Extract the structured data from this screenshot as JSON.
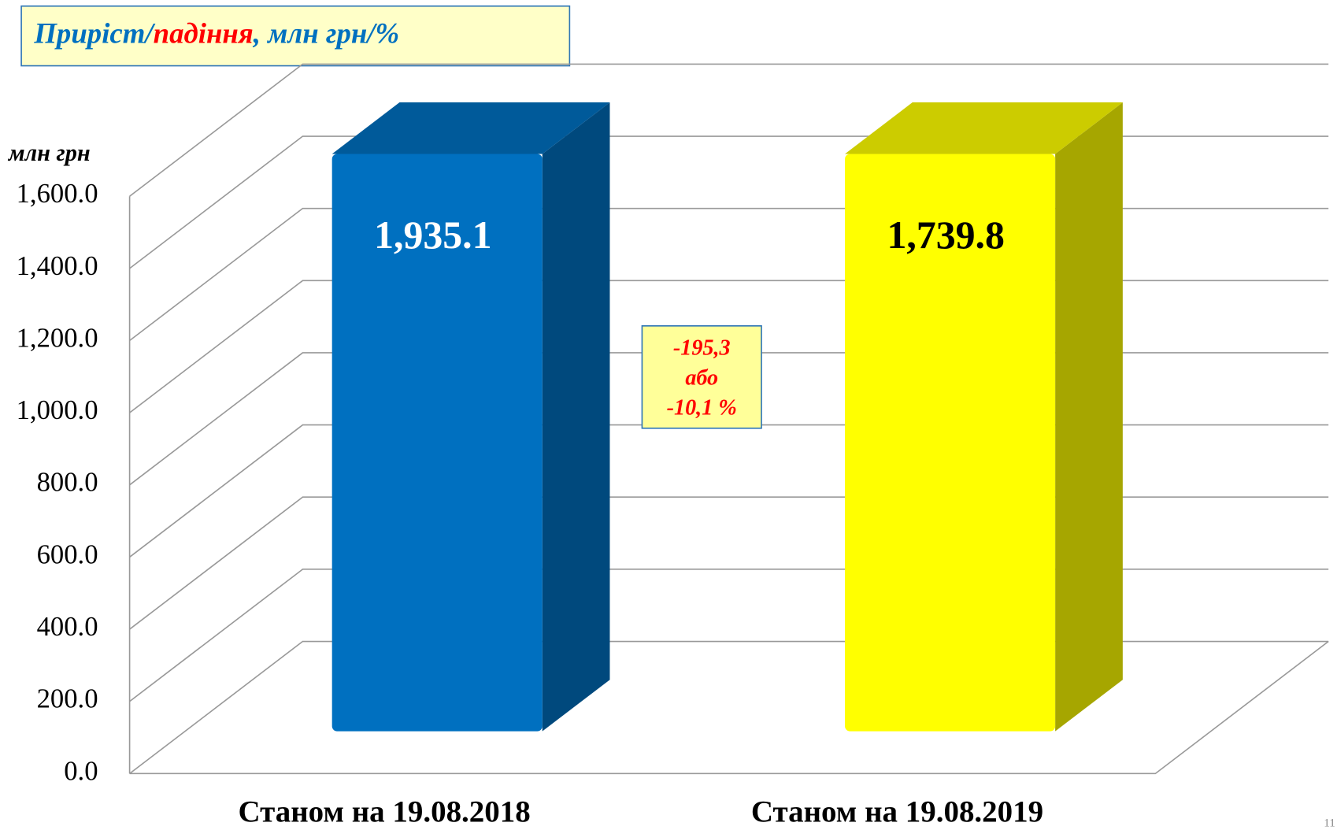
{
  "chart_data": {
    "type": "bar3d",
    "title": [
      "Приріст/",
      "падіння",
      ", млн грн/%"
    ],
    "ylabel": "млн грн",
    "categories": [
      "Станом на 19.08.2018",
      "Станом на 19.08.2019"
    ],
    "values": [
      1935.1,
      1739.8
    ],
    "value_labels": [
      "1,935.1",
      "1,739.8"
    ],
    "colors": [
      "#0070c0",
      "#ffff00"
    ],
    "label_colors": [
      "#ffffff",
      "#000000"
    ],
    "ylim": [
      0,
      1600
    ],
    "yticks": [
      {
        "value": 0,
        "label": "0.0"
      },
      {
        "value": 200,
        "label": "200.0"
      },
      {
        "value": 400,
        "label": "400.0"
      },
      {
        "value": 600,
        "label": "600.0"
      },
      {
        "value": 800,
        "label": "800.0"
      },
      {
        "value": 1000,
        "label": "1,000.0"
      },
      {
        "value": 1200,
        "label": "1,200.0"
      },
      {
        "value": 1400,
        "label": "1,400.0"
      },
      {
        "value": 1600,
        "label": "1,600.0"
      }
    ],
    "grid": true,
    "annotation": [
      "-195,3",
      "або",
      "-10,1 %"
    ],
    "page_number": "11"
  }
}
